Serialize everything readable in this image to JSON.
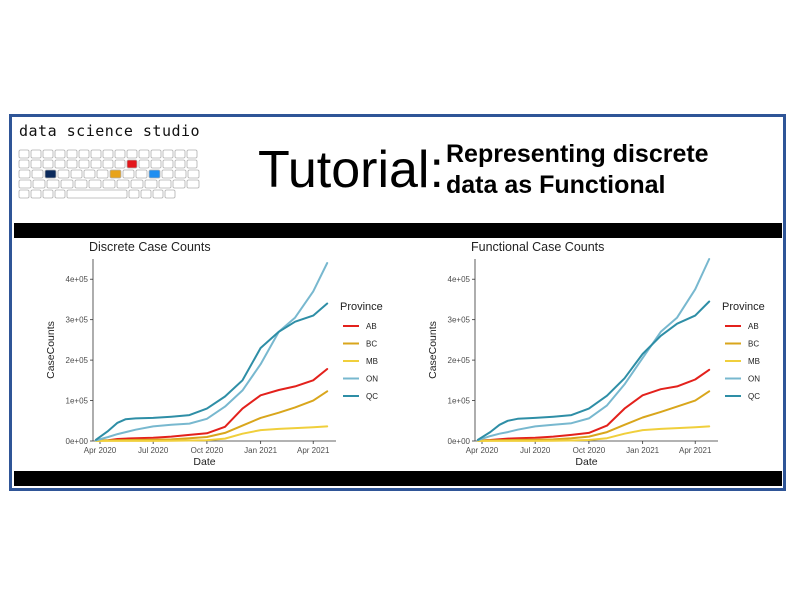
{
  "header": {
    "brand": "data science studio",
    "title_main": "Tutorial:",
    "title_sub_line1": "Representing discrete",
    "title_sub_line2": "data as Functional",
    "keyboard_accents": [
      "#0b2a5c",
      "#e8a31a",
      "#e3161b",
      "#1f8ef1"
    ]
  },
  "chart_data": [
    {
      "type": "line",
      "title": "Discrete Case Counts",
      "xlabel": "Date",
      "ylabel": "CaseCounts",
      "x_ticks": [
        "Apr 2020",
        "Jul 2020",
        "Oct 2020",
        "Jan 2021",
        "Apr 2021"
      ],
      "y_ticks": [
        "0e+00",
        "1e+05",
        "2e+05",
        "3e+05",
        "4e+05"
      ],
      "ylim": [
        0,
        450000
      ],
      "xlim": [
        "2020-03-20",
        "2021-05-10"
      ],
      "grid": false,
      "legend_title": "Province",
      "legend_position": "right",
      "x": [
        "2020-03-25",
        "2020-04-15",
        "2020-05-01",
        "2020-05-15",
        "2020-06-01",
        "2020-07-01",
        "2020-08-01",
        "2020-09-01",
        "2020-10-01",
        "2020-11-01",
        "2020-12-01",
        "2021-01-01",
        "2021-02-01",
        "2021-03-01",
        "2021-04-01",
        "2021-04-25"
      ],
      "series": [
        {
          "name": "AB",
          "color": "#e3211c",
          "values": [
            1000,
            2000,
            5000,
            6000,
            7000,
            8000,
            11000,
            15000,
            19000,
            35000,
            80000,
            113000,
            126000,
            135000,
            150000,
            178000
          ]
        },
        {
          "name": "BC",
          "color": "#d9a61c",
          "values": [
            1000,
            1500,
            2000,
            2300,
            2600,
            2900,
            4000,
            7000,
            10000,
            20000,
            38000,
            57000,
            70000,
            83000,
            100000,
            123000
          ]
        },
        {
          "name": "MB",
          "color": "#f0cf3c",
          "values": [
            100,
            200,
            270,
            280,
            300,
            330,
            400,
            1200,
            2000,
            6000,
            18000,
            27000,
            30000,
            32000,
            34000,
            36000
          ]
        },
        {
          "name": "ON",
          "color": "#78b8cf",
          "values": [
            1500,
            10000,
            17000,
            22000,
            28000,
            36000,
            40000,
            43000,
            55000,
            85000,
            125000,
            190000,
            270000,
            305000,
            370000,
            440000
          ]
        },
        {
          "name": "QC",
          "color": "#2e8ea6",
          "values": [
            3000,
            25000,
            45000,
            54000,
            56000,
            57000,
            60000,
            64000,
            80000,
            110000,
            150000,
            230000,
            270000,
            295000,
            310000,
            340000
          ]
        }
      ]
    },
    {
      "type": "line",
      "title": "Functional Case Counts",
      "xlabel": "Date",
      "ylabel": "CaseCounts",
      "x_ticks": [
        "Apr 2020",
        "Jul 2020",
        "Oct 2020",
        "Jan 2021",
        "Apr 2021"
      ],
      "y_ticks": [
        "0e+00",
        "1e+05",
        "2e+05",
        "3e+05",
        "4e+05"
      ],
      "ylim": [
        0,
        450000
      ],
      "xlim": [
        "2020-03-20",
        "2021-05-10"
      ],
      "grid": false,
      "legend_title": "Province",
      "legend_position": "right",
      "x": [
        "2020-03-25",
        "2020-04-15",
        "2020-05-01",
        "2020-05-15",
        "2020-06-01",
        "2020-07-01",
        "2020-08-01",
        "2020-09-01",
        "2020-10-01",
        "2020-11-01",
        "2020-12-01",
        "2021-01-01",
        "2021-02-01",
        "2021-03-01",
        "2021-04-01",
        "2021-04-25"
      ],
      "series": [
        {
          "name": "AB",
          "color": "#e3211c",
          "values": [
            1000,
            2500,
            4500,
            6000,
            7000,
            8000,
            11000,
            15000,
            20000,
            38000,
            80000,
            113000,
            128000,
            135000,
            152000,
            176000
          ]
        },
        {
          "name": "BC",
          "color": "#d9a61c",
          "values": [
            1000,
            1500,
            2000,
            2300,
            2600,
            3000,
            4000,
            7000,
            11000,
            22000,
            40000,
            58000,
            72000,
            85000,
            100000,
            123000
          ]
        },
        {
          "name": "MB",
          "color": "#f0cf3c",
          "values": [
            100,
            200,
            270,
            280,
            300,
            330,
            400,
            1200,
            2500,
            7000,
            18000,
            27000,
            30000,
            32000,
            34000,
            36000
          ]
        },
        {
          "name": "ON",
          "color": "#78b8cf",
          "values": [
            2000,
            12000,
            18000,
            22000,
            28000,
            36000,
            40000,
            44000,
            56000,
            88000,
            140000,
            205000,
            270000,
            305000,
            375000,
            450000
          ]
        },
        {
          "name": "QC",
          "color": "#2e8ea6",
          "values": [
            3000,
            22000,
            40000,
            50000,
            55000,
            57000,
            60000,
            64000,
            80000,
            112000,
            155000,
            215000,
            260000,
            290000,
            310000,
            345000
          ]
        }
      ]
    }
  ]
}
